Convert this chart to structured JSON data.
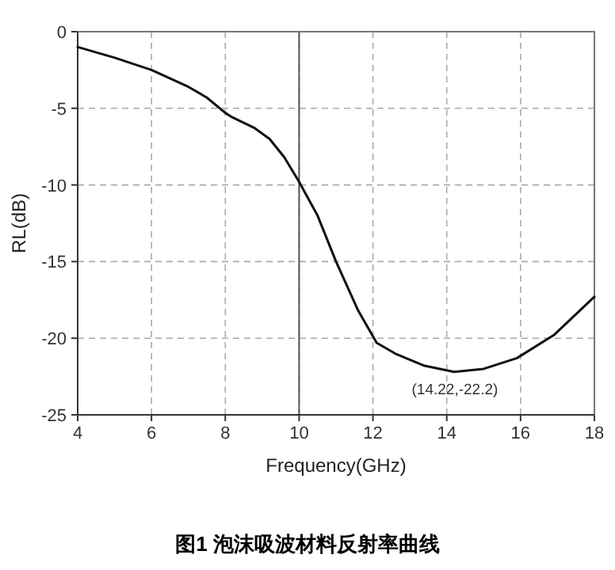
{
  "chart_data": {
    "type": "line",
    "xlabel": "Frequency(GHz)",
    "ylabel": "RL(dB)",
    "annotations": [
      {
        "text": "(14.22,-22.2)",
        "x": 14.22,
        "y": -22.2
      },
      "图1 泡沫吸波材料反射率曲线"
    ],
    "x": [
      4,
      5,
      6,
      7,
      7.5,
      8,
      8.2,
      8.8,
      9.2,
      9.6,
      10,
      10.5,
      11,
      11.6,
      12.1,
      12.6,
      13.4,
      14.2,
      15,
      15.9,
      16.9,
      18
    ],
    "series": [
      {
        "color": "#111111",
        "values": [
          -1.0,
          -1.7,
          -2.5,
          -3.6,
          -4.3,
          -5.3,
          -5.6,
          -6.3,
          -7.0,
          -8.2,
          -9.8,
          -12.0,
          -15.0,
          -18.2,
          -20.3,
          -21.0,
          -21.8,
          -22.2,
          -22.0,
          -21.3,
          -19.8,
          -17.3
        ]
      }
    ],
    "xlim": [
      4,
      18
    ],
    "xticks": [
      4,
      6,
      8,
      10,
      12,
      14,
      16,
      18
    ],
    "ylim": [
      -25,
      0
    ],
    "yticks": [
      -25,
      -20,
      -15,
      -10,
      -5,
      0
    ],
    "ref_lines": [
      {
        "axis": "x",
        "value": 10,
        "color": "#555555",
        "line_style": "solid"
      }
    ],
    "grid": true,
    "marker": "none",
    "line_style": "solid"
  }
}
